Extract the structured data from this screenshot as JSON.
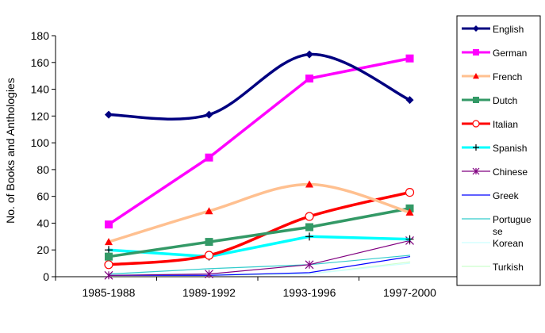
{
  "chart_data": {
    "type": "line",
    "ylabel": "No. of Books and Anthologies",
    "categories": [
      "1985-1988",
      "1989-1992",
      "1993-1996",
      "1997-2000"
    ],
    "ylim": [
      0,
      180
    ],
    "yticks": [
      0,
      20,
      40,
      60,
      80,
      100,
      120,
      140,
      160,
      180
    ],
    "grid": false,
    "legend_position": "right",
    "series": [
      {
        "name": "English",
        "values": [
          121,
          121,
          166,
          132
        ],
        "color": "#000080",
        "marker": "diamond",
        "smooth": true
      },
      {
        "name": "German",
        "values": [
          39,
          89,
          148,
          163
        ],
        "color": "#ff00ff",
        "marker": "square",
        "smooth": false
      },
      {
        "name": "French",
        "values": [
          26,
          49,
          69,
          48
        ],
        "color": "#ffc090",
        "marker": "triangle",
        "marker_color": "#ff0000",
        "smooth": true
      },
      {
        "name": "Dutch",
        "values": [
          15,
          26,
          37,
          51
        ],
        "color": "#339966",
        "marker": "square",
        "smooth": false
      },
      {
        "name": "Italian",
        "values": [
          9,
          16,
          45,
          63
        ],
        "color": "#ff0000",
        "marker": "circle",
        "smooth": true
      },
      {
        "name": "Spanish",
        "values": [
          20,
          15,
          30,
          28
        ],
        "color": "#00ffff",
        "marker": "plus",
        "smooth": false
      },
      {
        "name": "Chinese",
        "values": [
          1,
          2,
          9,
          27
        ],
        "color": "#800080",
        "marker": "star",
        "smooth": false
      },
      {
        "name": "Greek",
        "values": [
          1,
          1,
          3,
          15
        ],
        "color": "#0000ff",
        "marker": "none",
        "smooth": false
      },
      {
        "name": "Portuguese",
        "values": [
          2,
          6,
          9,
          16
        ],
        "color": "#33cccc",
        "marker": "none",
        "smooth": false
      },
      {
        "name": "Korean",
        "values": [
          2,
          2,
          2,
          10
        ],
        "color": "#ccffff",
        "marker": "none",
        "smooth": false
      },
      {
        "name": "Turkish",
        "values": [
          1,
          1,
          2,
          11
        ],
        "color": "#ccffcc",
        "marker": "none",
        "smooth": false
      }
    ]
  }
}
